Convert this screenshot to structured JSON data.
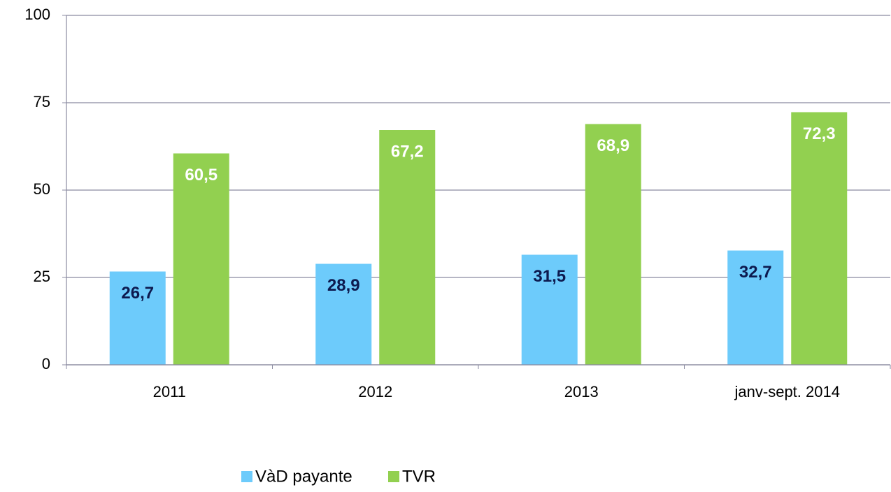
{
  "chart_data": {
    "type": "bar",
    "categories": [
      "2011",
      "2012",
      "2013",
      "janv-sept. 2014"
    ],
    "series": [
      {
        "name": "VàD payante",
        "color": "#6dcbfb",
        "label_color": "#0d1a4f",
        "values": [
          26.7,
          28.9,
          31.5,
          32.7
        ],
        "value_labels": [
          "26,7",
          "28,9",
          "31,5",
          "32,7"
        ]
      },
      {
        "name": "TVR",
        "color": "#92d050",
        "label_color": "#ffffff",
        "values": [
          60.5,
          67.2,
          68.9,
          72.3
        ],
        "value_labels": [
          "60,5",
          "67,2",
          "68,9",
          "72,3"
        ]
      }
    ],
    "ylim": [
      0,
      100
    ],
    "yticks": [
      0,
      25,
      50,
      75,
      100
    ],
    "grid": true,
    "legend": "bottom"
  }
}
